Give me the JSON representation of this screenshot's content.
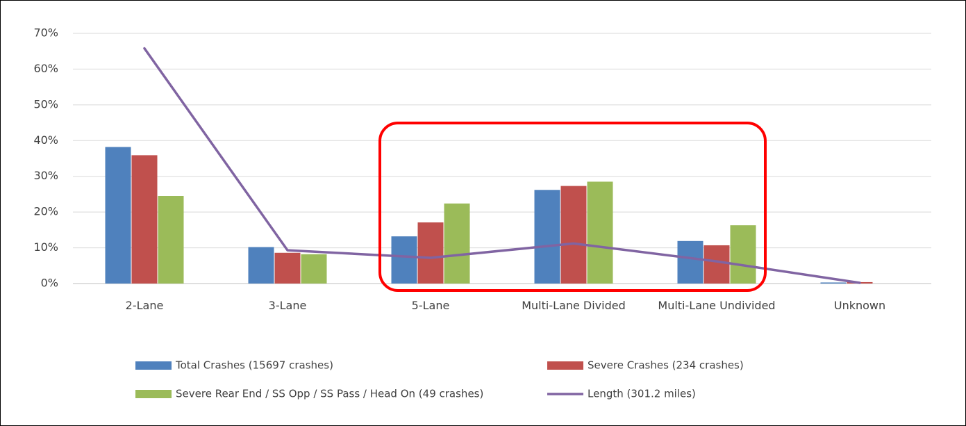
{
  "chart_data": {
    "type": "bar",
    "categories": [
      "2-Lane",
      "3-Lane",
      "5-Lane",
      "Multi-Lane Divided",
      "Multi-Lane Undivided",
      "Unknown"
    ],
    "series": [
      {
        "name": "Total Crashes (15697 crashes)",
        "color": "#4f81bd",
        "values": [
          38.2,
          10.2,
          13.2,
          26.2,
          11.9,
          0.3
        ]
      },
      {
        "name": "Severe Crashes (234 crashes)",
        "color": "#c0504d",
        "values": [
          35.9,
          8.6,
          17.1,
          27.3,
          10.7,
          0.4
        ]
      },
      {
        "name": "Severe Rear End / SS Opp / SS Pass / Head On (49 crashes)",
        "color": "#9bbb59",
        "values": [
          24.5,
          8.2,
          22.4,
          28.5,
          16.3,
          0
        ]
      },
      {
        "name": "Length (301.2 miles)",
        "color": "#8064a2",
        "type": "line",
        "values": [
          65.8,
          9.3,
          7.2,
          11.2,
          6.2,
          0.2
        ]
      }
    ],
    "ylim": [
      0,
      70
    ],
    "yticks": [
      {
        "value": 0,
        "label": "0%"
      },
      {
        "value": 10,
        "label": "10%"
      },
      {
        "value": 20,
        "label": "20%"
      },
      {
        "value": 30,
        "label": "30%"
      },
      {
        "value": 40,
        "label": "40%"
      },
      {
        "value": 50,
        "label": "50%"
      },
      {
        "value": 60,
        "label": "60%"
      },
      {
        "value": 70,
        "label": "70%"
      }
    ],
    "grid": true,
    "legend": "bottom"
  }
}
